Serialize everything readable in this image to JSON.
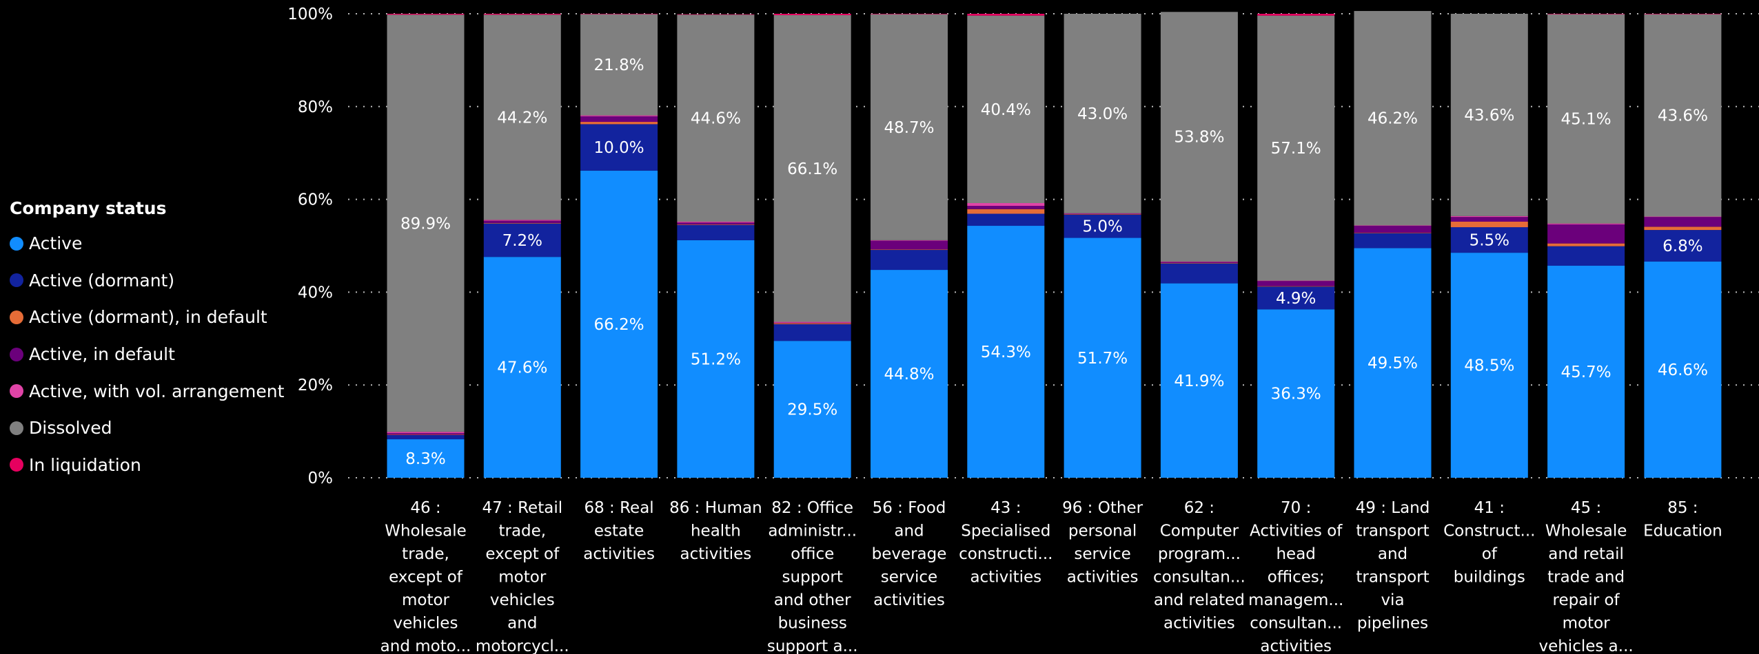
{
  "legend_title": "Company status",
  "chart_data": {
    "type": "bar",
    "stacked": true,
    "percent_stacked": true,
    "ylim": [
      0,
      100
    ],
    "y_ticks": [
      "0%",
      "20%",
      "40%",
      "60%",
      "80%",
      "100%"
    ],
    "gridlines": true,
    "legend_position": "left",
    "categories": [
      [
        "46 :",
        "Wholesale",
        "trade,",
        "except of",
        "motor",
        "vehicles",
        "and moto..."
      ],
      [
        "47 : Retail",
        "trade,",
        "except of",
        "motor",
        "vehicles",
        "and",
        "motorcycl..."
      ],
      [
        "68 : Real",
        "estate",
        "activities"
      ],
      [
        "86 : Human",
        "health",
        "activities"
      ],
      [
        "82 : Office",
        "administr...",
        "office",
        "support",
        "and other",
        "business",
        "support a..."
      ],
      [
        "56 : Food",
        "and",
        "beverage",
        "service",
        "activities"
      ],
      [
        "43 :",
        "Specialised",
        "constructi...",
        "activities"
      ],
      [
        "96 : Other",
        "personal",
        "service",
        "activities"
      ],
      [
        "62 :",
        "Computer",
        "program...",
        "consultan...",
        "and related",
        "activities"
      ],
      [
        "70 :",
        "Activities of",
        "head",
        "offices;",
        "managem...",
        "consultan...",
        "activities"
      ],
      [
        "49 : Land",
        "transport",
        "and",
        "transport",
        "via",
        "pipelines"
      ],
      [
        "41 :",
        "Construct...",
        "of",
        "buildings"
      ],
      [
        "45 :",
        "Wholesale",
        "and retail",
        "trade and",
        "repair of",
        "motor",
        "vehicles a..."
      ],
      [
        "85 :",
        "Education"
      ]
    ],
    "series": [
      {
        "name": "Active",
        "color": "#118DFF",
        "values": [
          8.3,
          47.6,
          66.2,
          51.2,
          29.5,
          44.8,
          54.3,
          51.7,
          41.9,
          36.3,
          49.5,
          48.5,
          45.7,
          46.6
        ],
        "labels": [
          "8.3%",
          "47.6%",
          "66.2%",
          "51.2%",
          "29.5%",
          "44.8%",
          "54.3%",
          "51.7%",
          "41.9%",
          "36.3%",
          "49.5%",
          "48.5%",
          "45.7%",
          "46.6%"
        ]
      },
      {
        "name": "Active (dormant)",
        "color": "#12239E",
        "values": [
          0.9,
          7.2,
          10.0,
          3.3,
          3.6,
          4.3,
          2.6,
          5.0,
          4.3,
          4.9,
          3.2,
          5.5,
          4.2,
          6.8
        ],
        "labels": [
          "",
          "7.2%",
          "10.0%",
          "",
          "",
          "",
          "",
          "5.0%",
          "",
          "4.9%",
          "",
          "5.5%",
          "",
          "6.8%"
        ]
      },
      {
        "name": "Active (dormant), in default",
        "color": "#E66C37",
        "values": [
          0.1,
          0.1,
          0.5,
          0.1,
          0.2,
          0.1,
          1.0,
          0.1,
          0.1,
          0.1,
          0.1,
          1.2,
          0.6,
          0.7
        ],
        "labels": [
          "",
          "",
          "",
          "",
          "",
          "",
          "",
          "",
          "",
          "",
          "",
          "",
          "",
          ""
        ]
      },
      {
        "name": "Active, in default",
        "color": "#6B007B",
        "values": [
          0.3,
          0.5,
          1.2,
          0.4,
          0.1,
          1.9,
          0.7,
          0.1,
          0.2,
          1.1,
          1.5,
          1.0,
          4.1,
          2.1
        ],
        "labels": [
          "",
          "",
          "",
          "",
          "",
          "",
          "",
          "",
          "",
          "",
          "",
          "",
          "",
          ""
        ]
      },
      {
        "name": "Active, with vol. arrangement",
        "color": "#E044A7",
        "values": [
          0.3,
          0.2,
          0.2,
          0.2,
          0.2,
          0.1,
          0.6,
          0.1,
          0.1,
          0.1,
          0.1,
          0.2,
          0.2,
          0.1
        ],
        "labels": [
          "",
          "",
          "",
          "",
          "",
          "",
          "",
          "",
          "",
          "",
          "",
          "",
          "",
          ""
        ]
      },
      {
        "name": "Dissolved",
        "color": "#808080",
        "values": [
          89.9,
          44.2,
          21.8,
          44.6,
          66.1,
          48.7,
          40.4,
          43.0,
          53.8,
          57.1,
          46.2,
          43.6,
          45.1,
          43.6
        ],
        "labels": [
          "89.9%",
          "44.2%",
          "21.8%",
          "44.6%",
          "66.1%",
          "48.7%",
          "40.4%",
          "43.0%",
          "53.8%",
          "57.1%",
          "46.2%",
          "43.6%",
          "45.1%",
          "43.6%"
        ]
      },
      {
        "name": "In liquidation",
        "color": "#E6005F",
        "values": [
          0.2,
          0.2,
          0.1,
          0.1,
          0.3,
          0.1,
          0.4,
          0.0,
          0.0,
          0.4,
          0.0,
          0.0,
          0.1,
          0.1
        ],
        "labels": [
          "",
          "",
          "",
          "",
          "",
          "",
          "",
          "",
          "",
          "",
          "",
          "",
          "",
          ""
        ]
      }
    ]
  }
}
